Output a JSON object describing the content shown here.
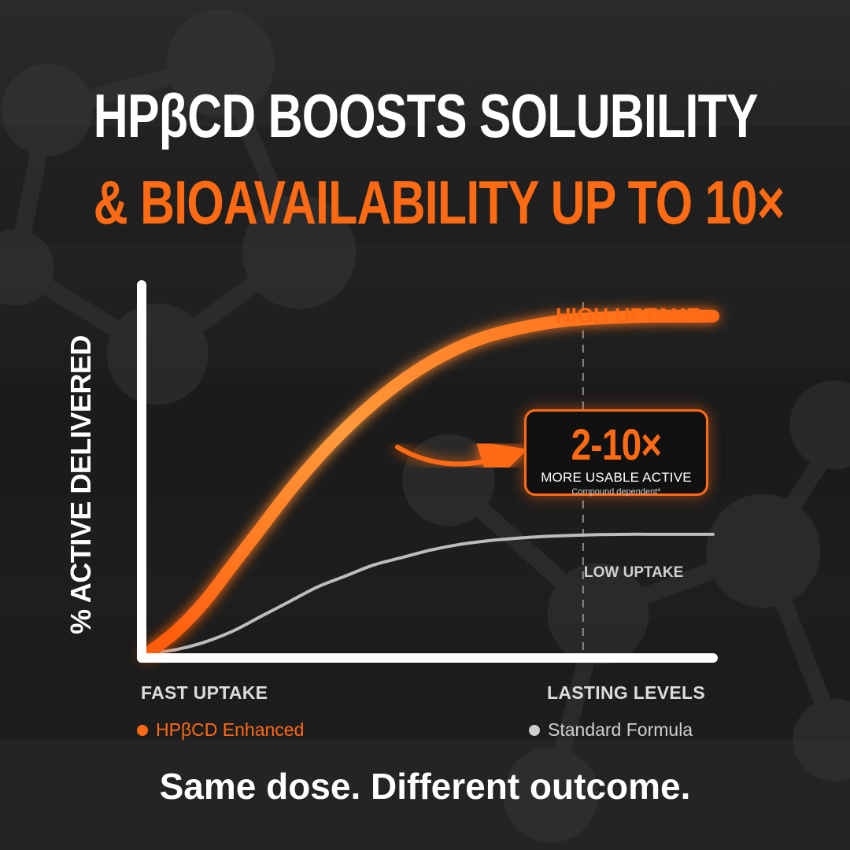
{
  "headline": {
    "line1": "HPβCD BOOSTS SOLUBILITY",
    "line2_prefix": "& BIOAVAILABILITY UP TO ",
    "line2_highlight": "10×",
    "line2_text": "& BIOAVAILABILITY UP TO 10×"
  },
  "colors": {
    "accent": "#ff6a14",
    "accent_light": "#ff9a3c",
    "standard": "#bdbdbd",
    "background": "#161616",
    "text": "#ffffff"
  },
  "callout": {
    "value": "2-10×",
    "label": "MORE USABLE ACTIVE",
    "note": "Compound dependent*"
  },
  "tagline": "Same dose. Different outcome.",
  "chart_data": {
    "type": "line",
    "ylabel": "% ACTIVE DELIVERED",
    "x_tick_labels": [
      "FAST UPTAKE",
      "LASTING LEVELS"
    ],
    "annotations": [
      "HIGH UPTAKE",
      "LOW UPTAKE"
    ],
    "reference_line": {
      "style": "dashed",
      "x": 0.77
    },
    "grid": false,
    "legend_position": "bottom",
    "xlim": [
      0,
      1
    ],
    "ylim": [
      0,
      1
    ],
    "series": [
      {
        "name": "HPβCD Enhanced",
        "color": "#ff6a14",
        "x": [
          0,
          0.05,
          0.1,
          0.15,
          0.2,
          0.25,
          0.3,
          0.35,
          0.4,
          0.45,
          0.5,
          0.55,
          0.6,
          0.65,
          0.7,
          0.75,
          0.8,
          0.85,
          0.9,
          0.95,
          1.0
        ],
        "y": [
          0,
          0.06,
          0.14,
          0.24,
          0.34,
          0.44,
          0.53,
          0.61,
          0.68,
          0.74,
          0.79,
          0.83,
          0.86,
          0.88,
          0.895,
          0.905,
          0.91,
          0.913,
          0.915,
          0.915,
          0.915
        ]
      },
      {
        "name": "Standard Formula",
        "color": "#bdbdbd",
        "x": [
          0,
          0.05,
          0.1,
          0.15,
          0.2,
          0.25,
          0.3,
          0.35,
          0.4,
          0.45,
          0.5,
          0.55,
          0.6,
          0.65,
          0.7,
          0.75,
          0.8,
          0.85,
          0.9,
          0.95,
          1.0
        ],
        "y": [
          0,
          0.01,
          0.03,
          0.06,
          0.1,
          0.14,
          0.18,
          0.21,
          0.24,
          0.26,
          0.28,
          0.295,
          0.305,
          0.312,
          0.317,
          0.32,
          0.322,
          0.323,
          0.323,
          0.323,
          0.323
        ]
      }
    ]
  }
}
